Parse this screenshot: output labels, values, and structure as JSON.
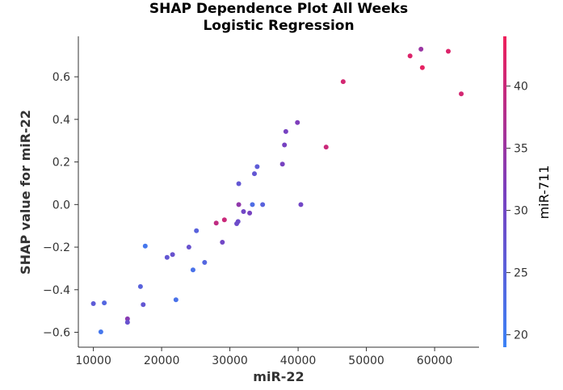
{
  "chart_data": {
    "type": "scatter",
    "title": "SHAP Dependence Plot All Weeks",
    "subtitle": "Logistic Regression",
    "xlabel": "miR-22",
    "ylabel": "SHAP value for miR-22",
    "xlim": [
      7800,
      66500
    ],
    "ylim": [
      -0.67,
      0.79
    ],
    "xticks": [
      10000,
      20000,
      30000,
      40000,
      50000,
      60000
    ],
    "xtick_labels": [
      "10000",
      "20000",
      "30000",
      "40000",
      "50000",
      "60000"
    ],
    "yticks": [
      -0.6,
      -0.4,
      -0.2,
      0.0,
      0.2,
      0.4,
      0.6
    ],
    "ytick_labels": [
      "−0.6",
      "−0.4",
      "−0.2",
      "0.0",
      "0.2",
      "0.4",
      "0.6"
    ],
    "grid": false,
    "colorbar": {
      "label": "miR-711",
      "range": [
        19,
        44
      ],
      "ticks": [
        20,
        25,
        30,
        35,
        40
      ],
      "tick_labels": [
        "20",
        "25",
        "30",
        "35",
        "40"
      ],
      "color_low": "#3b82f6",
      "color_mid": "#7a3fbf",
      "color_high": "#ef1f5a"
    },
    "points": [
      {
        "x": 10000,
        "y": -0.465,
        "c": 26
      },
      {
        "x": 11100,
        "y": -0.598,
        "c": 21
      },
      {
        "x": 11600,
        "y": -0.462,
        "c": 24
      },
      {
        "x": 15000,
        "y": -0.537,
        "c": 33
      },
      {
        "x": 15000,
        "y": -0.553,
        "c": 28
      },
      {
        "x": 16900,
        "y": -0.385,
        "c": 25
      },
      {
        "x": 17300,
        "y": -0.47,
        "c": 27
      },
      {
        "x": 17600,
        "y": -0.195,
        "c": 21
      },
      {
        "x": 20800,
        "y": -0.248,
        "c": 27
      },
      {
        "x": 21600,
        "y": -0.235,
        "c": 28
      },
      {
        "x": 22100,
        "y": -0.447,
        "c": 22
      },
      {
        "x": 24000,
        "y": -0.2,
        "c": 28
      },
      {
        "x": 24600,
        "y": -0.307,
        "c": 22
      },
      {
        "x": 25100,
        "y": -0.123,
        "c": 25
      },
      {
        "x": 26300,
        "y": -0.272,
        "c": 24
      },
      {
        "x": 28000,
        "y": -0.087,
        "c": 39
      },
      {
        "x": 28900,
        "y": -0.177,
        "c": 30
      },
      {
        "x": 29200,
        "y": -0.072,
        "c": 40
      },
      {
        "x": 31000,
        "y": -0.09,
        "c": 29
      },
      {
        "x": 31200,
        "y": -0.08,
        "c": 29
      },
      {
        "x": 31300,
        "y": 0.0,
        "c": 34
      },
      {
        "x": 31300,
        "y": 0.098,
        "c": 27
      },
      {
        "x": 32000,
        "y": -0.033,
        "c": 30
      },
      {
        "x": 32900,
        "y": -0.04,
        "c": 31
      },
      {
        "x": 33300,
        "y": 0.0,
        "c": 23
      },
      {
        "x": 33600,
        "y": 0.145,
        "c": 27
      },
      {
        "x": 34000,
        "y": 0.178,
        "c": 26
      },
      {
        "x": 34800,
        "y": 0.0,
        "c": 25
      },
      {
        "x": 37700,
        "y": 0.19,
        "c": 31
      },
      {
        "x": 38000,
        "y": 0.28,
        "c": 31
      },
      {
        "x": 38200,
        "y": 0.343,
        "c": 31
      },
      {
        "x": 39900,
        "y": 0.385,
        "c": 32
      },
      {
        "x": 40400,
        "y": 0.0,
        "c": 30
      },
      {
        "x": 44100,
        "y": 0.27,
        "c": 40
      },
      {
        "x": 46600,
        "y": 0.577,
        "c": 41
      },
      {
        "x": 56400,
        "y": 0.698,
        "c": 42
      },
      {
        "x": 58000,
        "y": 0.73,
        "c": 35
      },
      {
        "x": 58200,
        "y": 0.643,
        "c": 43
      },
      {
        "x": 62000,
        "y": 0.72,
        "c": 42
      },
      {
        "x": 63900,
        "y": 0.52,
        "c": 41
      }
    ]
  }
}
